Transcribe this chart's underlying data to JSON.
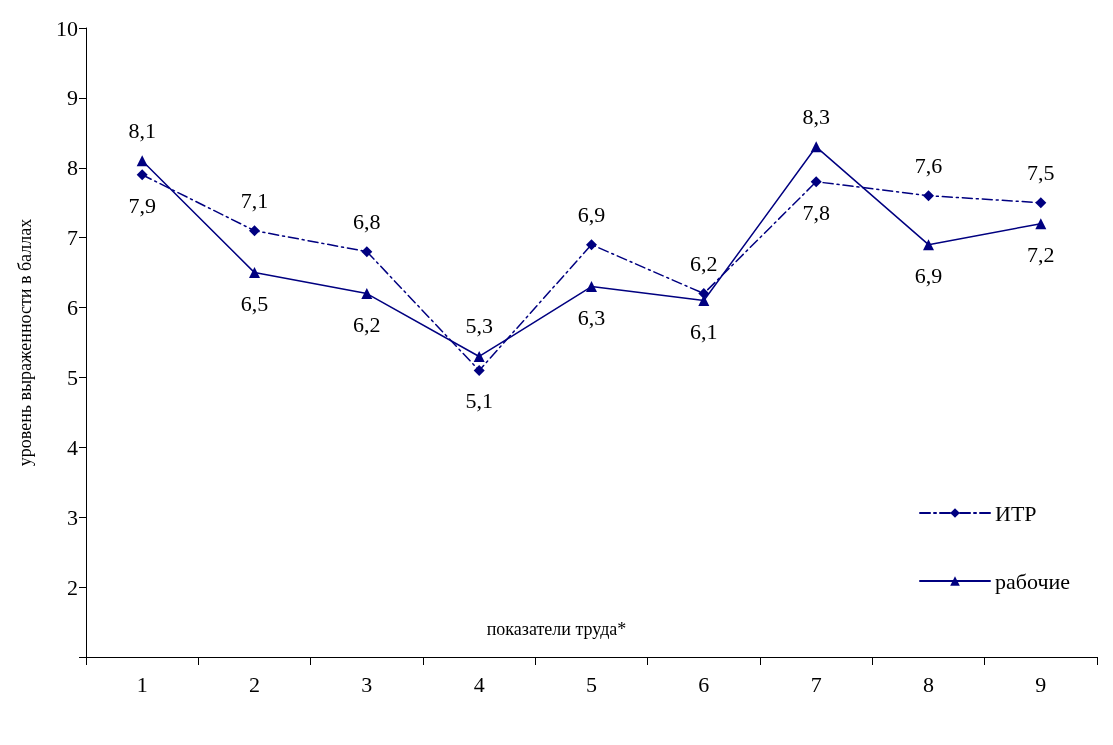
{
  "chart_data": {
    "type": "line",
    "xlabel": "показатели труда*",
    "ylabel": "уровень выраженности в баллах",
    "categories": [
      "1",
      "2",
      "3",
      "4",
      "5",
      "6",
      "7",
      "8",
      "9"
    ],
    "ylim": [
      1,
      10
    ],
    "yticks": [
      {
        "value": 1,
        "label": null
      },
      2,
      3,
      4,
      5,
      6,
      7,
      8,
      9,
      10
    ],
    "grid": false,
    "legend": "bottom right",
    "series": [
      {
        "name": "ИТР",
        "color": "#000080",
        "marker": "diamond",
        "line_style": "dashdot",
        "values": [
          7.9,
          7.1,
          6.8,
          5.1,
          6.9,
          6.2,
          7.8,
          7.6,
          7.5
        ],
        "value_labels": [
          "7,9",
          "7,1",
          "6,8",
          "5,1",
          "6,9",
          "6,2",
          "7,8",
          "7,6",
          "7,5"
        ]
      },
      {
        "name": "рабочие",
        "color": "#000080",
        "marker": "triangle",
        "line_style": "solid",
        "values": [
          8.1,
          6.5,
          6.2,
          5.3,
          6.3,
          6.1,
          8.3,
          6.9,
          7.2
        ],
        "value_labels": [
          "8,1",
          "6,5",
          "6,2",
          "5,3",
          "6,3",
          "6,1",
          "8,3",
          "6,9",
          "7,2"
        ]
      }
    ]
  }
}
